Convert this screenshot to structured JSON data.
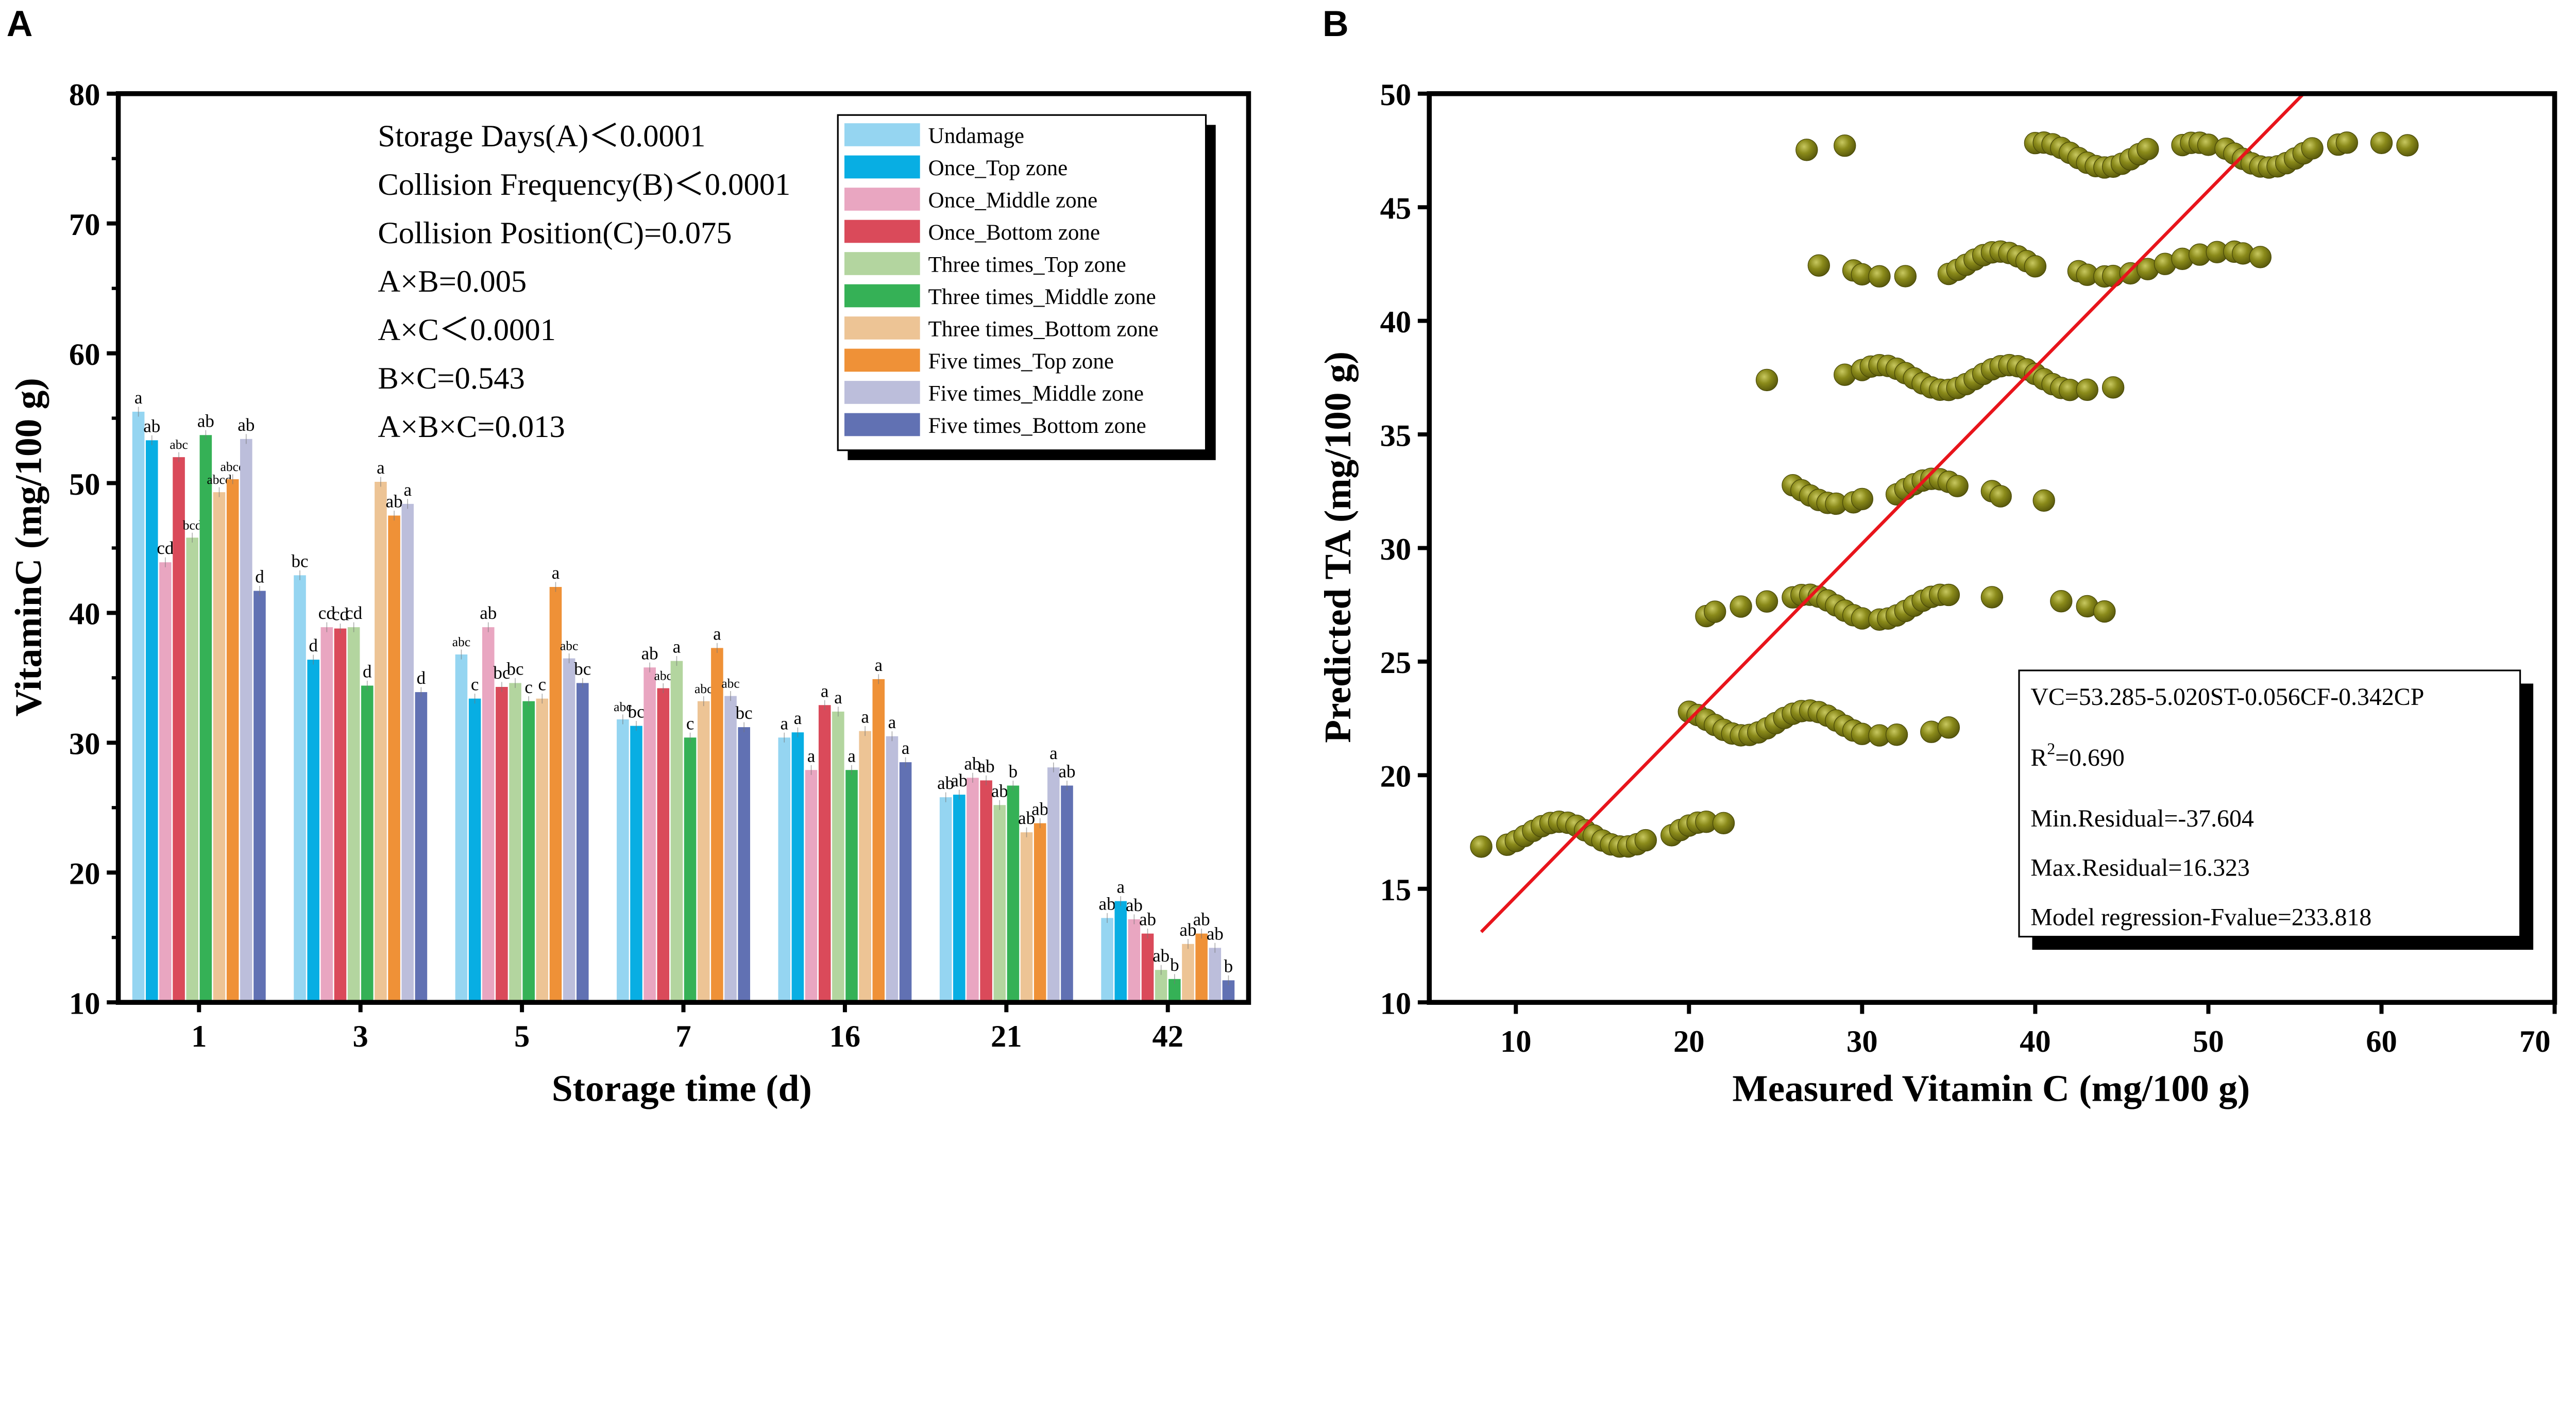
{
  "panel_labels": {
    "a": "A",
    "b": "B"
  },
  "chart_data": [
    {
      "type": "bar",
      "title": "",
      "xlabel": "Storage time (d)",
      "ylabel": "VitaminC (mg/100 g)",
      "ylim": [
        10,
        80
      ],
      "yticks": [
        "10",
        "20",
        "30",
        "40",
        "50",
        "60",
        "70",
        "80"
      ],
      "categories": [
        "1",
        "3",
        "5",
        "7",
        "16",
        "21",
        "42"
      ],
      "legend_position": "top-right",
      "annotations": [
        "Storage Days(A)＜0.0001",
        "Collision Frequency(B)＜0.0001",
        "Collision Position(C)=0.075",
        "A×B=0.005",
        "A×C＜0.0001",
        "B×C=0.543",
        "A×B×C=0.013"
      ],
      "series": [
        {
          "name": "Undamage",
          "color": "#95d5f1",
          "values": [
            55.5,
            42.9,
            36.8,
            31.8,
            30.4,
            25.8,
            16.5
          ],
          "letters": [
            "a",
            "bc",
            "abc",
            "abc",
            "a",
            "ab",
            "ab"
          ]
        },
        {
          "name": "Once_Top zone",
          "color": "#08aee3",
          "values": [
            53.3,
            36.4,
            33.4,
            31.3,
            30.8,
            26.0,
            17.8
          ],
          "letters": [
            "ab",
            "d",
            "c",
            "bc",
            "a",
            "ab",
            "a"
          ]
        },
        {
          "name": "Once_Middle zone",
          "color": "#e9a6c1",
          "values": [
            43.9,
            38.9,
            38.9,
            35.8,
            27.9,
            27.3,
            16.4
          ],
          "letters": [
            "cd",
            "cd",
            "ab",
            "ab",
            "a",
            "ab",
            "ab"
          ]
        },
        {
          "name": "Once_Bottom zone",
          "color": "#da4a5a",
          "values": [
            52.0,
            38.8,
            34.3,
            34.2,
            32.9,
            27.1,
            15.3
          ],
          "letters": [
            "abc",
            "cd",
            "bc",
            "abc",
            "a",
            "ab",
            "ab"
          ]
        },
        {
          "name": "Three times_Top zone",
          "color": "#b3d59f",
          "values": [
            45.8,
            38.9,
            34.6,
            36.3,
            32.4,
            25.2,
            12.5
          ],
          "letters": [
            "bcd",
            "cd",
            "bc",
            "a",
            "a",
            "ab",
            "ab"
          ]
        },
        {
          "name": "Three times_Middle zone",
          "color": "#35b156",
          "values": [
            53.7,
            34.4,
            33.2,
            30.4,
            27.9,
            26.7,
            11.8
          ],
          "letters": [
            "ab",
            "d",
            "c",
            "c",
            "a",
            "b",
            "b"
          ]
        },
        {
          "name": "Three times_Bottom zone",
          "color": "#edc495",
          "values": [
            49.3,
            50.1,
            33.4,
            33.2,
            30.9,
            23.1,
            14.5
          ],
          "letters": [
            "abcd",
            "a",
            "c",
            "abc",
            "a",
            "ab",
            "ab"
          ]
        },
        {
          "name": "Five times_Top zone",
          "color": "#ef9137",
          "values": [
            50.3,
            47.5,
            42.0,
            37.3,
            34.9,
            23.8,
            15.3
          ],
          "letters": [
            "abcd",
            "ab",
            "a",
            "a",
            "a",
            "ab",
            "ab"
          ]
        },
        {
          "name": "Five times_Middle zone",
          "color": "#bcbedb",
          "values": [
            53.4,
            48.4,
            36.5,
            33.6,
            30.5,
            28.1,
            14.2
          ],
          "letters": [
            "ab",
            "a",
            "abc",
            "abc",
            "a",
            "a",
            "ab"
          ]
        },
        {
          "name": "Five times_Bottom zone",
          "color": "#6171b3",
          "values": [
            41.7,
            33.9,
            34.6,
            31.2,
            28.5,
            26.7,
            11.7
          ],
          "letters": [
            "d",
            "d",
            "bc",
            "bc",
            "a",
            "ab",
            "b"
          ]
        }
      ]
    },
    {
      "type": "scatter",
      "xlabel": "Measured Vitamin C (mg/100 g)",
      "ylabel": "Predicted TA (mg/100 g)",
      "xlim": [
        5,
        70
      ],
      "ylim": [
        10,
        50
      ],
      "xticks": [
        "10",
        "20",
        "30",
        "40",
        "50",
        "60",
        "70"
      ],
      "yticks": [
        "10",
        "15",
        "20",
        "25",
        "30",
        "35",
        "40",
        "45",
        "50"
      ],
      "point_color": "#7d7d12",
      "line_color": "#e8141b",
      "fit_line": [
        [
          8,
          13.1
        ],
        [
          55.5,
          50
        ]
      ],
      "stats_box": [
        "VC=53.285-5.020ST-0.056CF-0.342CP",
        "R",
        "2",
        "=0.690",
        "Min.Residual=-37.604",
        "Max.Residual=16.323",
        "Model regression-Fvalue=233.818"
      ],
      "rows": [
        {
          "y": 47.3,
          "x": [
            26.8,
            29,
            40,
            40.5,
            41,
            41.5,
            42,
            42.5,
            43,
            43.5,
            44,
            44.5,
            45,
            45.5,
            46,
            46.5,
            48.5,
            49,
            49.5,
            50,
            51,
            51.5,
            52,
            52.5,
            53,
            53.5,
            54,
            54.5,
            55,
            55.5,
            56,
            57.5,
            58,
            60,
            61.5
          ]
        },
        {
          "y": 42.5,
          "x": [
            27.5,
            29.5,
            30,
            31,
            32.5,
            35,
            35.5,
            36,
            36.5,
            37,
            37.5,
            38,
            38.5,
            39,
            39.5,
            40,
            42.5,
            43,
            44,
            44.5,
            45.5,
            46.5,
            47.5,
            48.5,
            49.5,
            50.5,
            51.5,
            52,
            53
          ]
        },
        {
          "y": 37.5,
          "x": [
            24.5,
            29,
            30,
            30.5,
            31,
            31.5,
            32,
            32.5,
            33,
            33.5,
            34,
            34.5,
            35,
            35.5,
            36,
            36.5,
            37,
            37.5,
            38,
            38.5,
            39,
            39.5,
            40,
            40.5,
            41,
            41.5,
            42,
            43,
            44.5
          ]
        },
        {
          "y": 32.5,
          "x": [
            26,
            26.5,
            27,
            27.5,
            28,
            28.5,
            29.5,
            30,
            32,
            32.5,
            33,
            33.5,
            34,
            34.5,
            35,
            35.5,
            37.5,
            38,
            40.5
          ]
        },
        {
          "y": 27.4,
          "x": [
            21,
            21.5,
            23,
            24.5,
            26,
            26.5,
            27,
            27.5,
            28,
            28.5,
            29,
            29.5,
            30,
            31,
            31.5,
            32,
            32.5,
            33,
            33.5,
            34,
            34.5,
            35,
            37.5,
            41.5,
            43,
            44
          ]
        },
        {
          "y": 22.3,
          "x": [
            20,
            20.5,
            21,
            21.5,
            22,
            22.5,
            23,
            23.5,
            24,
            24.5,
            25,
            25.5,
            26,
            26.5,
            27,
            27.5,
            28,
            28.5,
            29,
            29.5,
            30,
            31,
            32,
            34,
            35
          ]
        },
        {
          "y": 17.4,
          "x": [
            8,
            9.5,
            10,
            10.5,
            11,
            11.5,
            12,
            12.5,
            13,
            13.5,
            14,
            14.5,
            15,
            15.5,
            16,
            16.5,
            17,
            17.5,
            19,
            19.5,
            20,
            20.5,
            21,
            22
          ]
        }
      ]
    }
  ]
}
